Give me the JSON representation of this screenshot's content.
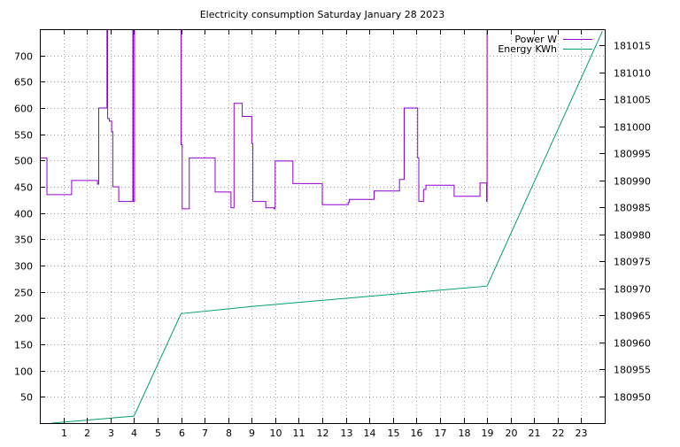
{
  "chart_data": {
    "type": "line",
    "title": "Electricity consumption Saturday January 28 2023",
    "x": {
      "range": [
        0,
        24
      ],
      "ticks": [
        1,
        2,
        3,
        4,
        5,
        6,
        7,
        8,
        9,
        10,
        11,
        12,
        13,
        14,
        15,
        16,
        17,
        18,
        19,
        20,
        21,
        22,
        23
      ],
      "tick_labels": [
        "1",
        "2",
        "3",
        "4",
        "5",
        "6",
        "7",
        "8",
        "9",
        "10",
        "11",
        "12",
        "13",
        "14",
        "15",
        "16",
        "17",
        "18",
        "19",
        "20",
        "21",
        "22",
        "23"
      ]
    },
    "y_left": {
      "range": [
        0,
        750
      ],
      "ticks": [
        50,
        100,
        150,
        200,
        250,
        300,
        350,
        400,
        450,
        500,
        550,
        600,
        650,
        700
      ],
      "tick_labels": [
        "50",
        "100",
        "150",
        "200",
        "250",
        "300",
        "350",
        "400",
        "450",
        "500",
        "550",
        "600",
        "650",
        "700"
      ]
    },
    "y_right": {
      "range": [
        180945,
        181018
      ],
      "ticks": [
        180950,
        180955,
        180960,
        180965,
        180970,
        180975,
        180980,
        180985,
        180990,
        180995,
        181000,
        181005,
        181010,
        181015
      ],
      "tick_labels": [
        "180950",
        "180955",
        "180960",
        "180965",
        "180970",
        "180975",
        "180980",
        "180985",
        "180990",
        "180995",
        "181000",
        "181005",
        "181010",
        "181015"
      ]
    },
    "grid": true,
    "legend": {
      "placement": "top-right"
    },
    "series": [
      {
        "name": "Power W",
        "axis": "left",
        "color": "#9400d3",
        "step": true,
        "x": [
          0,
          0.3,
          1.35,
          2.45,
          2.5,
          2.85,
          2.88,
          2.95,
          3.05,
          3.1,
          3.35,
          3.95,
          3.97,
          4.02,
          5.95,
          6.0,
          6.05,
          6.35,
          7.45,
          8.12,
          8.25,
          8.6,
          9.0,
          9.05,
          9.6,
          9.95,
          10.0,
          10.75,
          12.0,
          13.1,
          13.15,
          14.2,
          15.28,
          15.48,
          15.5,
          16.05,
          16.1,
          16.3,
          16.4,
          17.6,
          18.7,
          18.98,
          19.0
        ],
        "y": [
          505,
          435,
          462,
          455,
          600,
          760,
          580,
          575,
          555,
          450,
          422,
          760,
          422,
          760,
          760,
          530,
          408,
          505,
          440,
          410,
          609,
          584,
          532,
          422,
          410,
          408,
          499,
          456,
          416,
          420,
          426,
          442,
          464,
          600,
          600,
          505,
          422,
          445,
          453,
          432,
          457,
          422,
          760
        ]
      },
      {
        "name": "Energy KWh",
        "axis": "right",
        "color": "#009e73",
        "step": false,
        "x": [
          0.5,
          4.0,
          6.0,
          9.0,
          19.0,
          23.9
        ],
        "y": [
          180945.0,
          180946.3,
          180965.3,
          180966.6,
          180970.4,
          181017.6
        ]
      }
    ]
  }
}
